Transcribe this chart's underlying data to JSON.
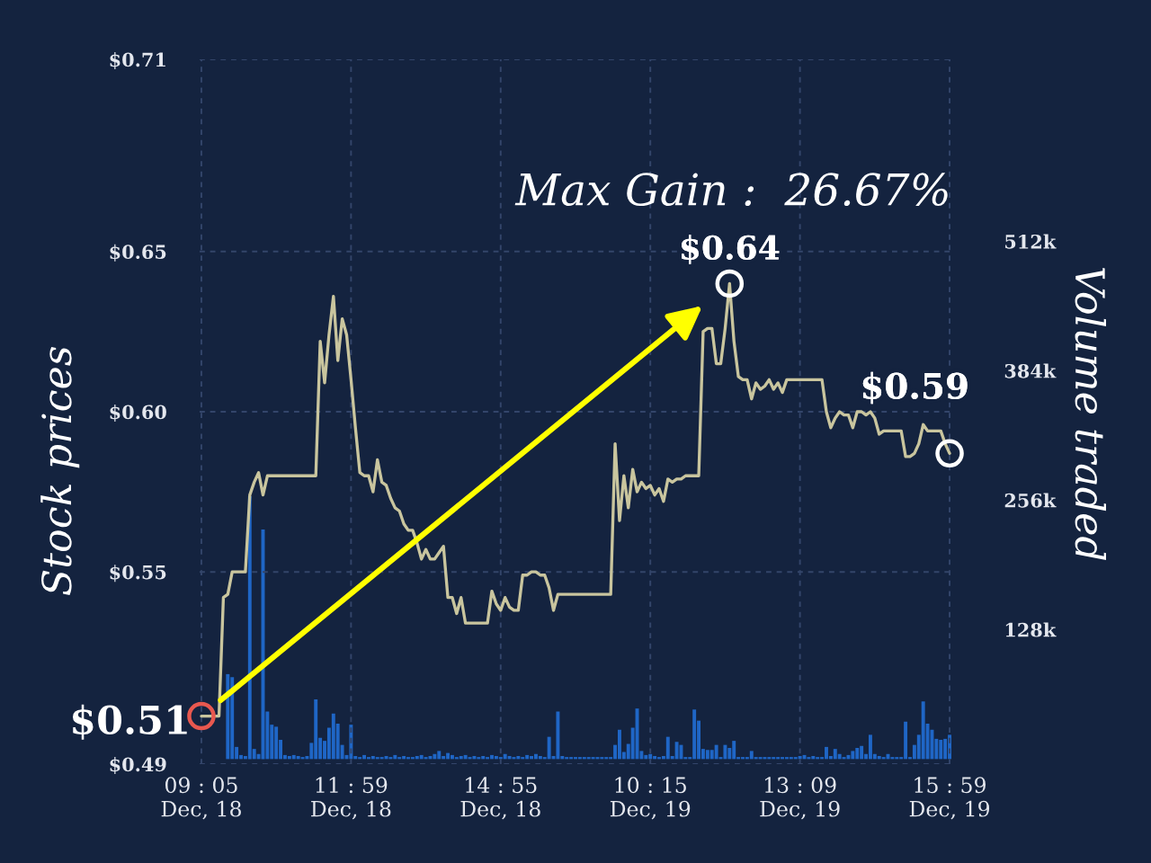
{
  "chart_data": {
    "type": "line",
    "ylabel": "Stock prices",
    "y2label": "Volume traded",
    "categories": [
      "09 : 05\nDec, 18",
      null,
      null,
      null,
      null,
      null,
      null,
      null,
      null,
      null,
      null,
      null,
      null,
      null,
      null,
      null,
      null,
      null,
      null,
      null,
      null,
      null,
      null,
      null,
      null,
      null,
      null,
      null,
      null,
      null,
      null,
      null,
      null,
      null,
      "11 : 59\nDec, 18",
      null,
      null,
      null,
      null,
      null,
      null,
      null,
      null,
      null,
      null,
      null,
      null,
      null,
      null,
      null,
      null,
      null,
      null,
      null,
      null,
      null,
      null,
      null,
      null,
      null,
      null,
      null,
      null,
      null,
      null,
      null,
      null,
      null,
      "14 : 55\nDec, 18",
      null,
      null,
      null,
      null,
      null,
      null,
      null,
      null,
      null,
      null,
      null,
      null,
      null,
      null,
      null,
      null,
      null,
      null,
      null,
      null,
      null,
      null,
      null,
      null,
      null,
      null,
      null,
      null,
      null,
      null,
      null,
      null,
      null,
      "10 : 15\nDec, 19",
      null,
      null,
      null,
      null,
      null,
      null,
      null,
      null,
      null,
      null,
      null,
      null,
      null,
      null,
      null,
      null,
      null,
      null,
      null,
      null,
      null,
      null,
      null,
      null,
      null,
      null,
      null,
      null,
      null,
      null,
      null,
      null,
      null,
      "13 : 09\nDec, 19",
      null,
      null,
      null,
      null,
      null,
      null,
      null,
      null,
      null,
      null,
      null,
      null,
      null,
      null,
      null,
      null,
      null,
      null,
      null,
      null,
      null,
      null,
      null,
      null,
      null,
      null,
      null,
      null,
      null,
      null,
      null,
      null,
      null,
      "15 : 59\nDec, 19"
    ],
    "ylim": [
      0.49,
      0.71
    ],
    "yticks": [
      {
        "value": 0.49,
        "label": "$0.49"
      },
      {
        "value": 0.55,
        "label": "$0.55"
      },
      {
        "value": 0.6,
        "label": "$0.60"
      },
      {
        "value": 0.65,
        "label": "$0.65"
      },
      {
        "value": 0.71,
        "label": "$0.71"
      }
    ],
    "y2lim": [
      -5000,
      692000
    ],
    "y2ticks": [
      {
        "value": 128000,
        "label": "128k"
      },
      {
        "value": 256000,
        "label": "256k"
      },
      {
        "value": 384000,
        "label": "384k"
      },
      {
        "value": 512000,
        "label": "512k"
      }
    ],
    "grid": true,
    "series": [
      {
        "type": "bar",
        "axis": "y2",
        "color": "#1f66c6",
        "values": [
          null,
          null,
          null,
          null,
          null,
          null,
          84000,
          81000,
          12000,
          4000,
          3000,
          260000,
          10000,
          5000,
          227000,
          47000,
          34000,
          32000,
          19000,
          4000,
          3000,
          4000,
          3000,
          2000,
          3000,
          16000,
          59000,
          21000,
          18000,
          31000,
          45000,
          35000,
          14000,
          4000,
          34000,
          3000,
          2000,
          4000,
          2000,
          3000,
          2000,
          2000,
          3000,
          2000,
          4000,
          2000,
          3000,
          2000,
          2000,
          3000,
          4000,
          2000,
          3000,
          5000,
          8000,
          3000,
          6000,
          4000,
          2000,
          3000,
          4000,
          2000,
          3000,
          2000,
          3000,
          2000,
          4000,
          3000,
          2000,
          5000,
          3000,
          2000,
          3000,
          2000,
          4000,
          3000,
          5000,
          3000,
          2000,
          22000,
          3000,
          47000,
          3000,
          2000,
          2000,
          2000,
          2000,
          2000,
          2000,
          2000,
          2000,
          2000,
          2000,
          2000,
          14000,
          29000,
          7000,
          15000,
          31000,
          50000,
          8000,
          4000,
          5000,
          3000,
          2000,
          3000,
          22000,
          3000,
          17000,
          14000,
          2000,
          2000,
          49000,
          38000,
          10000,
          9000,
          9000,
          14000,
          2000,
          14000,
          11000,
          18000,
          2000,
          2000,
          2000,
          8000,
          2000,
          2000,
          2000,
          2000,
          2000,
          2000,
          2000,
          2000,
          2000,
          2000,
          3000,
          4000,
          2000,
          3000,
          2000,
          2000,
          12000,
          3000,
          10000,
          5000,
          2000,
          4000,
          8000,
          11000,
          13000,
          5000,
          24000,
          5000,
          3000,
          2000,
          5000,
          2000,
          2000,
          2000,
          37000,
          2000,
          14000,
          24000,
          57000,
          35000,
          29000,
          20000,
          19000,
          20000,
          24000
        ]
      },
      {
        "color": "#c9c59e",
        "values": [
          0.505,
          0.505,
          0.505,
          0.505,
          0.505,
          0.542,
          0.543,
          0.55,
          0.55,
          0.55,
          0.55,
          0.574,
          0.578,
          0.581,
          0.574,
          0.58,
          0.58,
          0.58,
          0.58,
          0.58,
          0.58,
          0.58,
          0.58,
          0.58,
          0.58,
          0.58,
          0.58,
          0.622,
          0.609,
          0.624,
          0.636,
          0.616,
          0.629,
          0.624,
          0.61,
          0.595,
          0.581,
          0.58,
          0.58,
          0.575,
          0.585,
          0.578,
          0.577,
          0.573,
          0.57,
          0.569,
          0.565,
          0.563,
          0.563,
          0.559,
          0.554,
          0.557,
          0.554,
          0.554,
          0.556,
          0.558,
          0.542,
          0.542,
          0.537,
          0.542,
          0.534,
          0.534,
          0.534,
          0.534,
          0.534,
          0.534,
          0.544,
          0.54,
          0.538,
          0.542,
          0.539,
          0.538,
          0.538,
          0.549,
          0.549,
          0.55,
          0.55,
          0.549,
          0.549,
          0.545,
          0.538,
          0.543,
          0.543,
          0.543,
          0.543,
          0.543,
          0.543,
          0.543,
          0.543,
          0.543,
          0.543,
          0.543,
          0.543,
          0.543,
          0.59,
          0.566,
          0.58,
          0.57,
          0.582,
          0.575,
          0.578,
          0.576,
          0.577,
          0.574,
          0.576,
          0.572,
          0.579,
          0.578,
          0.579,
          0.579,
          0.58,
          0.58,
          0.58,
          0.58,
          0.625,
          0.626,
          0.626,
          0.615,
          0.615,
          0.626,
          0.64,
          0.622,
          0.611,
          0.61,
          0.61,
          0.604,
          0.609,
          0.607,
          0.608,
          0.61,
          0.607,
          0.609,
          0.606,
          0.61,
          0.61,
          0.61,
          0.61,
          0.61,
          0.61,
          0.61,
          0.61,
          0.61,
          0.6,
          0.595,
          0.598,
          0.6,
          0.599,
          0.599,
          0.595,
          0.6,
          0.6,
          0.599,
          0.6,
          0.598,
          0.593,
          0.594,
          0.594,
          0.594,
          0.594,
          0.594,
          0.586,
          0.586,
          0.587,
          0.59,
          0.596,
          0.594,
          0.594,
          0.594,
          0.594,
          0.59,
          0.587
        ]
      },
      {
        "type": "scatter",
        "marker": "circle",
        "color": "#e8584f",
        "values": [
          0.505,
          null,
          null,
          null,
          null,
          null,
          null,
          null,
          null,
          null,
          null,
          null,
          null,
          null,
          null,
          null,
          null,
          null,
          null,
          null,
          null,
          null,
          null,
          null,
          null,
          null,
          null,
          null,
          null,
          null,
          null,
          null,
          null,
          null,
          null,
          null,
          null,
          null,
          null,
          null,
          null,
          null,
          null,
          null,
          null,
          null,
          null,
          null,
          null,
          null,
          null,
          null,
          null,
          null,
          null,
          null,
          null,
          null,
          null,
          null,
          null,
          null,
          null,
          null,
          null,
          null,
          null,
          null,
          null,
          null,
          null,
          null,
          null,
          null,
          null,
          null,
          null,
          null,
          null,
          null,
          null,
          null,
          null,
          null,
          null,
          null,
          null,
          null,
          null,
          null,
          null,
          null,
          null,
          null,
          null,
          null,
          null,
          null,
          null,
          null,
          null,
          null,
          null,
          null,
          null,
          null,
          null,
          null,
          null,
          null,
          null,
          null,
          null,
          null,
          null,
          null,
          null,
          null,
          null,
          null,
          null,
          null,
          null,
          null,
          null,
          null,
          null,
          null,
          null,
          null,
          null,
          null,
          null,
          null,
          null,
          null,
          null,
          null,
          null,
          null,
          null,
          null,
          null,
          null,
          null,
          null,
          null,
          null,
          null,
          null,
          null,
          null,
          null,
          null,
          null,
          null,
          null,
          null,
          null,
          null,
          null,
          null,
          null,
          null,
          null,
          null,
          null,
          null,
          null,
          null,
          null
        ]
      },
      {
        "type": "scatter",
        "marker": "circle",
        "color": "#ffffff",
        "values": [
          null,
          null,
          null,
          null,
          null,
          null,
          null,
          null,
          null,
          null,
          null,
          null,
          null,
          null,
          null,
          null,
          null,
          null,
          null,
          null,
          null,
          null,
          null,
          null,
          null,
          null,
          null,
          null,
          null,
          null,
          null,
          null,
          null,
          null,
          null,
          null,
          null,
          null,
          null,
          null,
          null,
          null,
          null,
          null,
          null,
          null,
          null,
          null,
          null,
          null,
          null,
          null,
          null,
          null,
          null,
          null,
          null,
          null,
          null,
          null,
          null,
          null,
          null,
          null,
          null,
          null,
          null,
          null,
          null,
          null,
          null,
          null,
          null,
          null,
          null,
          null,
          null,
          null,
          null,
          null,
          null,
          null,
          null,
          null,
          null,
          null,
          null,
          null,
          null,
          null,
          null,
          null,
          null,
          null,
          null,
          null,
          null,
          null,
          null,
          null,
          null,
          null,
          null,
          null,
          null,
          null,
          null,
          null,
          null,
          null,
          null,
          null,
          null,
          null,
          null,
          null,
          null,
          null,
          null,
          null,
          0.64,
          null,
          null,
          null,
          null,
          null,
          null,
          null,
          null,
          null,
          null,
          null,
          null,
          null,
          null,
          null,
          null,
          null,
          null,
          null,
          null,
          null,
          null,
          null,
          null,
          null,
          null,
          null,
          null,
          null,
          null,
          null,
          null,
          null,
          null,
          null,
          null,
          null,
          null,
          null,
          null,
          null,
          null,
          null,
          null,
          null,
          null,
          null,
          null,
          null,
          0.587
        ]
      }
    ],
    "annotations": [
      "Max Gain :  26.67%",
      "$0.51",
      {
        "text": "$0.64",
        "y": 0.64
      },
      {
        "text": "$0.59",
        "y": 0.587
      }
    ]
  }
}
